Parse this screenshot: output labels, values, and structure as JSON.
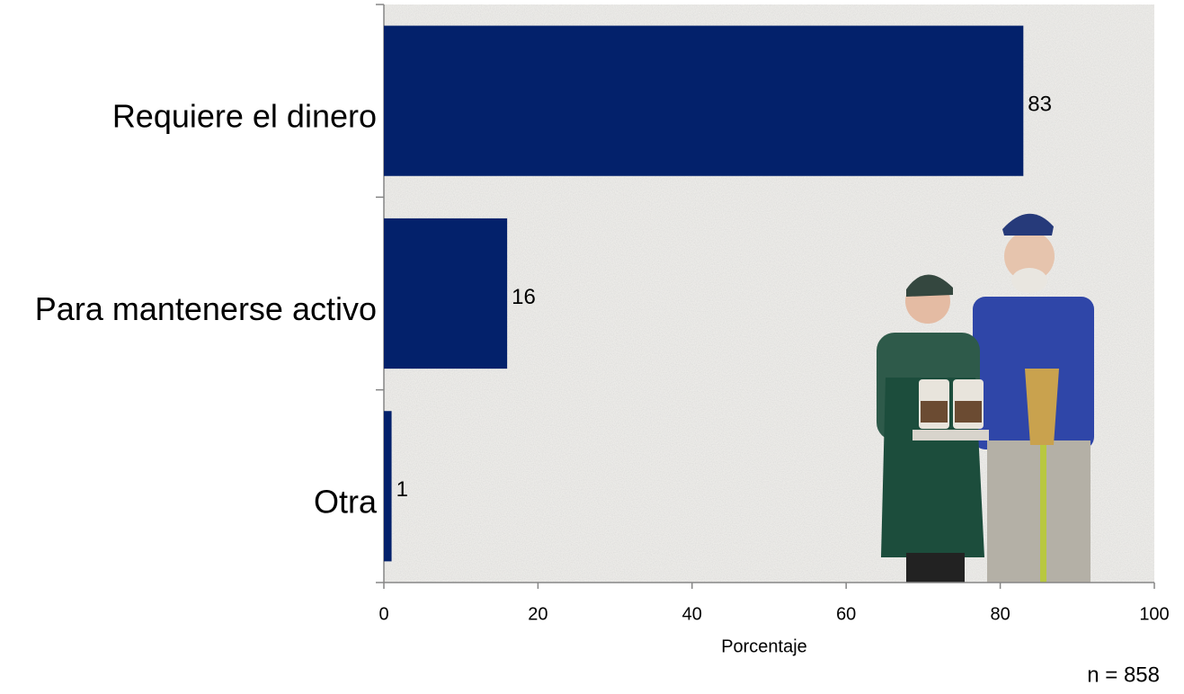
{
  "chart_data": {
    "type": "bar",
    "orientation": "horizontal",
    "categories": [
      "Requiere el dinero",
      "Para mantenerse activo",
      "Otra"
    ],
    "values": [
      83,
      16,
      1
    ],
    "color": "#03216b",
    "xlim": [
      0,
      100
    ],
    "xticks": [
      0,
      20,
      40,
      60,
      80,
      100
    ],
    "xlabel": "Porcentaje",
    "annotation": "n = 858"
  }
}
